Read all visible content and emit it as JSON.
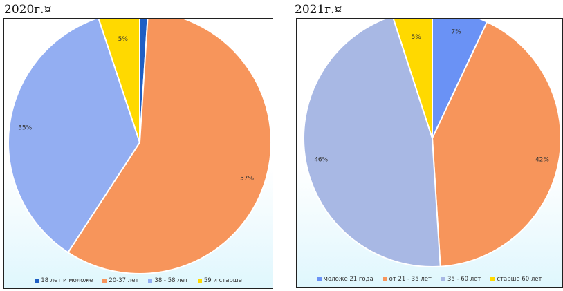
{
  "chart_data": [
    {
      "type": "pie",
      "title": "2020г.¤",
      "categories": [
        "18 лет и моложе",
        "20-37 лет",
        "38 - 58 лет",
        "59 и старше"
      ],
      "values": [
        1,
        57,
        35,
        5
      ],
      "data_labels": [
        "1%",
        "57%",
        "35%",
        "5%"
      ],
      "colors": [
        "#1f5fc4",
        "#f7955b",
        "#93aef2",
        "#ffd900"
      ],
      "legend_position": "bottom"
    },
    {
      "type": "pie",
      "title": "2021г.¤",
      "categories": [
        "моложе 21 года",
        "от 21 - 35 лет",
        "35 - 60 лет",
        "старше 60 лет"
      ],
      "values": [
        7,
        42,
        46,
        5
      ],
      "data_labels": [
        "7%",
        "42%",
        "46%",
        "5%"
      ],
      "colors": [
        "#6a92f5",
        "#f7955b",
        "#a8b8e4",
        "#ffd900"
      ],
      "legend_position": "bottom"
    }
  ]
}
